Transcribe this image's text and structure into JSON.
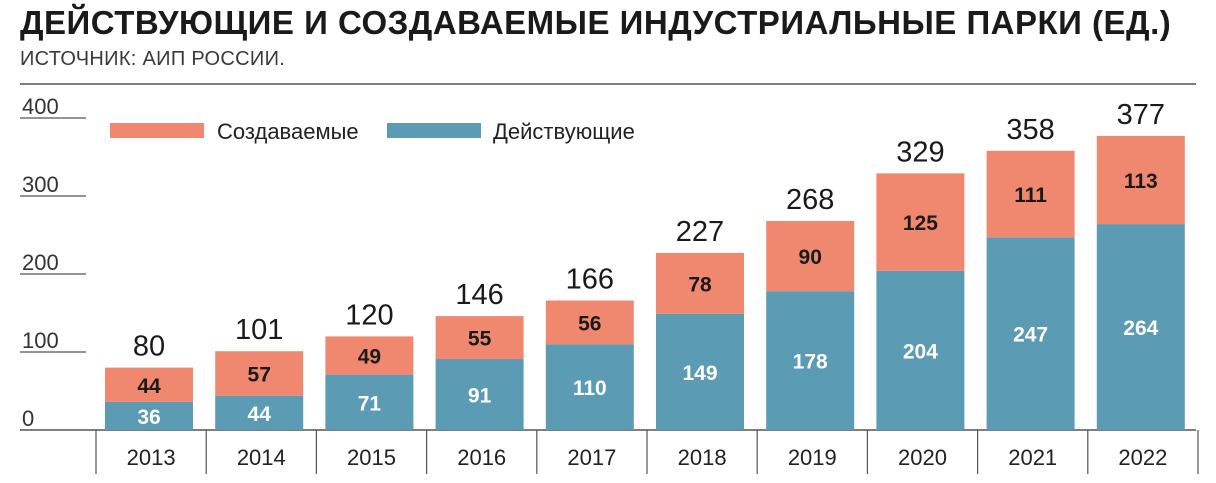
{
  "title": "ДЕЙСТВУЮЩИЕ И СОЗДАВАЕМЫЕ ИНДУСТРИАЛЬНЫЕ ПАРКИ (ЕД.)",
  "subtitle": "ИСТОЧНИК: АИП РОССИИ.",
  "colors": {
    "creating": "#f08870",
    "operating": "#5b9bb3",
    "rule": "#555555"
  },
  "chart_data": {
    "type": "bar",
    "stacked": true,
    "categories": [
      "2013",
      "2014",
      "2015",
      "2016",
      "2017",
      "2018",
      "2019",
      "2020",
      "2021",
      "2022"
    ],
    "series": [
      {
        "name": "Действующие",
        "values": [
          36,
          44,
          71,
          91,
          110,
          149,
          178,
          204,
          247,
          264
        ]
      },
      {
        "name": "Создаваемые",
        "values": [
          44,
          57,
          49,
          55,
          56,
          78,
          90,
          125,
          111,
          113
        ]
      }
    ],
    "totals": [
      80,
      101,
      120,
      146,
      166,
      227,
      268,
      329,
      358,
      377
    ],
    "yticks": [
      0,
      100,
      200,
      300,
      400
    ],
    "ylim": [
      0,
      400
    ],
    "legend": {
      "position": "top-left",
      "items": [
        "Создаваемые",
        "Действующие"
      ]
    }
  }
}
